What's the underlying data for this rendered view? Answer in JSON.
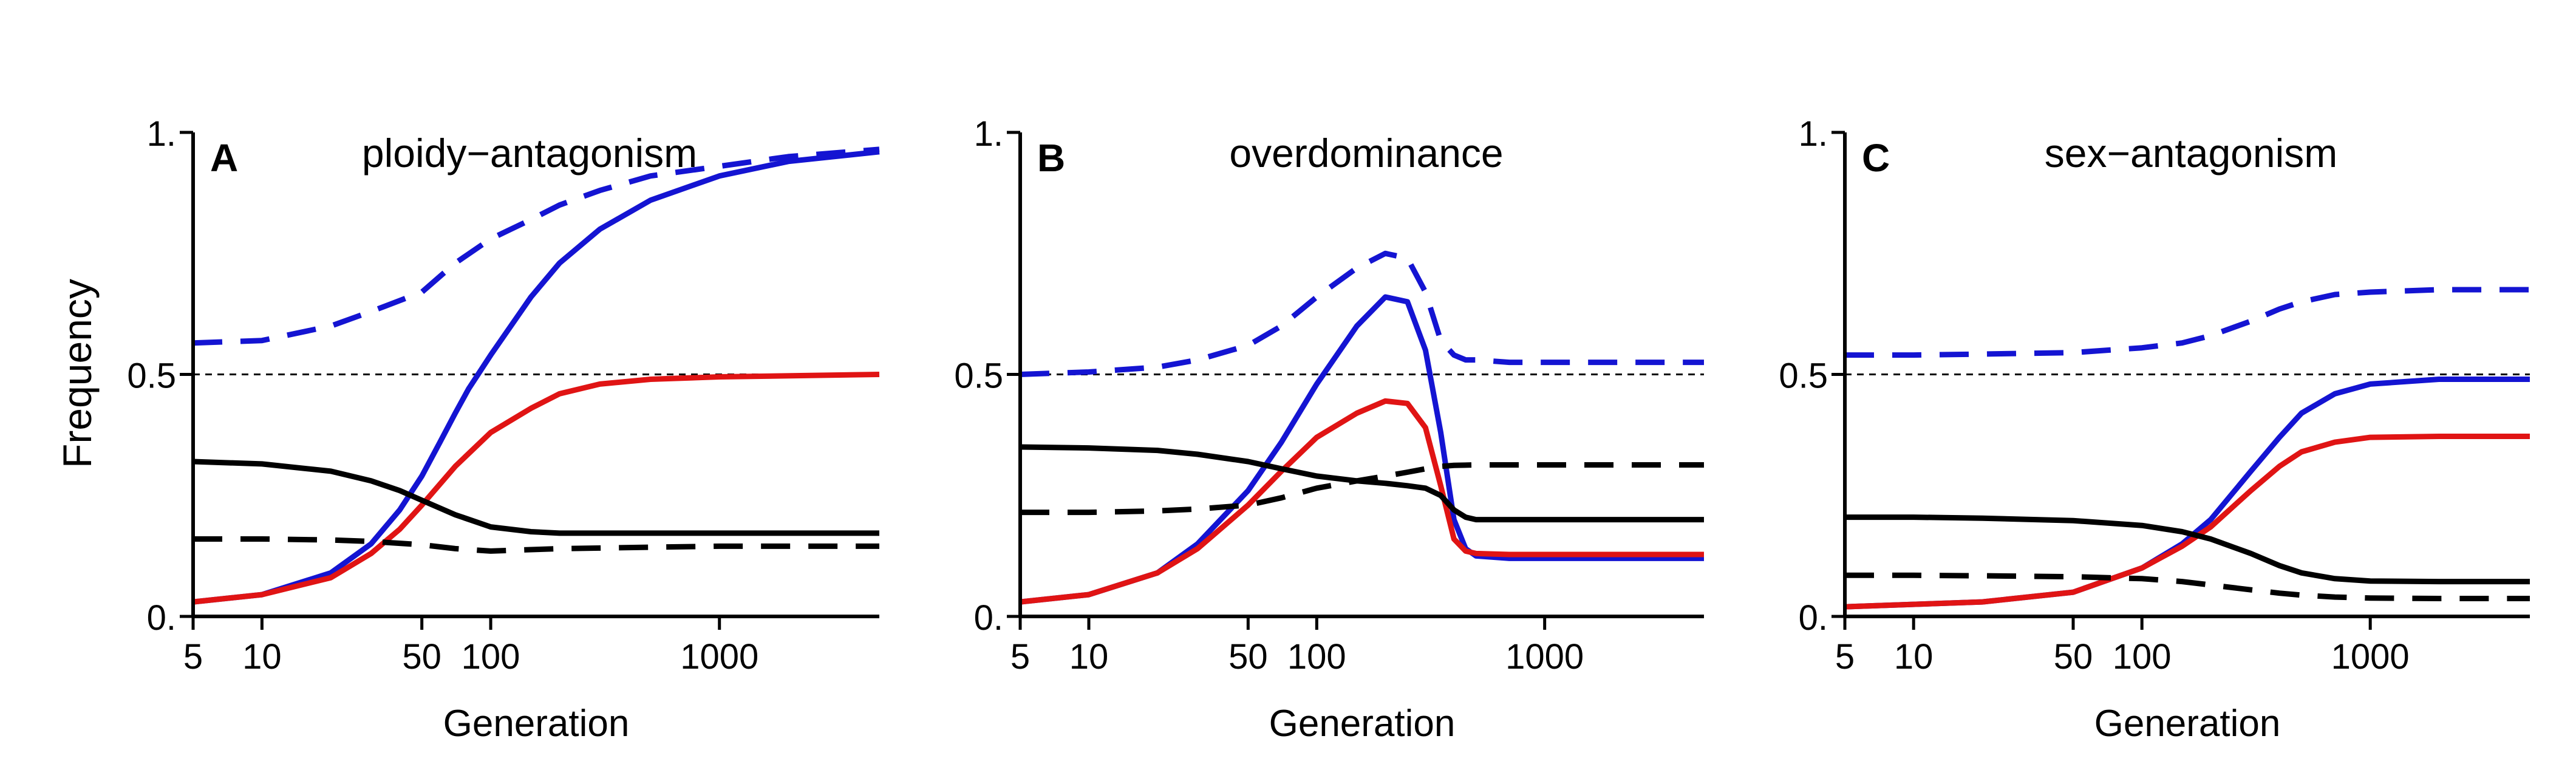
{
  "figure": {
    "ylabel": "Frequency"
  },
  "colors": {
    "blue": "#1414d2",
    "red": "#e01414",
    "black": "#000000"
  },
  "chart_data": [
    {
      "type": "line",
      "panel_letter": "A",
      "title": "ploidy−antagonism",
      "xlabel": "Generation",
      "ylabel": "Frequency",
      "x_scale": "log",
      "xlim": [
        5,
        5000
      ],
      "ylim": [
        0,
        1
      ],
      "x_ticks": [
        5,
        10,
        50,
        100,
        1000
      ],
      "x_tick_labels": [
        "5",
        "10",
        "50",
        "100",
        "1000"
      ],
      "y_ticks": [
        0,
        0.5,
        1
      ],
      "y_tick_labels": [
        "0.",
        "0.5",
        "1."
      ],
      "reference_line": 0.5,
      "series": [
        {
          "color": "#1414d2",
          "dash": "solid",
          "x": [
            5,
            10,
            20,
            30,
            40,
            50,
            60,
            70,
            80,
            100,
            150,
            200,
            300,
            500,
            1000,
            2000,
            5000
          ],
          "y": [
            0.03,
            0.045,
            0.09,
            0.15,
            0.22,
            0.29,
            0.36,
            0.42,
            0.47,
            0.54,
            0.66,
            0.73,
            0.8,
            0.86,
            0.91,
            0.94,
            0.96
          ]
        },
        {
          "color": "#1414d2",
          "dash": "dashed",
          "x": [
            5,
            10,
            20,
            30,
            50,
            70,
            100,
            150,
            200,
            300,
            500,
            1000,
            2000,
            5000
          ],
          "y": [
            0.565,
            0.57,
            0.6,
            0.63,
            0.67,
            0.73,
            0.78,
            0.82,
            0.85,
            0.88,
            0.91,
            0.93,
            0.95,
            0.965
          ]
        },
        {
          "color": "#e01414",
          "dash": "solid",
          "x": [
            5,
            10,
            20,
            30,
            40,
            50,
            70,
            100,
            150,
            200,
            300,
            500,
            1000,
            5000
          ],
          "y": [
            0.03,
            0.045,
            0.08,
            0.13,
            0.18,
            0.23,
            0.31,
            0.38,
            0.43,
            0.46,
            0.48,
            0.49,
            0.495,
            0.5
          ]
        },
        {
          "color": "#000000",
          "dash": "solid",
          "x": [
            5,
            10,
            20,
            30,
            40,
            50,
            70,
            100,
            150,
            200,
            500,
            1000,
            5000
          ],
          "y": [
            0.32,
            0.315,
            0.3,
            0.28,
            0.26,
            0.24,
            0.21,
            0.185,
            0.175,
            0.172,
            0.172,
            0.172,
            0.172
          ]
        },
        {
          "color": "#000000",
          "dash": "dashed",
          "x": [
            5,
            10,
            20,
            30,
            50,
            70,
            100,
            150,
            200,
            500,
            1000,
            5000
          ],
          "y": [
            0.16,
            0.16,
            0.158,
            0.155,
            0.148,
            0.14,
            0.135,
            0.138,
            0.14,
            0.143,
            0.145,
            0.145
          ]
        }
      ]
    },
    {
      "type": "line",
      "panel_letter": "B",
      "title": "overdominance",
      "xlabel": "Generation",
      "ylabel": "",
      "x_scale": "log",
      "xlim": [
        5,
        5000
      ],
      "ylim": [
        0,
        1
      ],
      "x_ticks": [
        5,
        10,
        50,
        100,
        1000
      ],
      "x_tick_labels": [
        "5",
        "10",
        "50",
        "100",
        "1000"
      ],
      "y_ticks": [
        0,
        0.5,
        1
      ],
      "y_tick_labels": [
        "0.",
        "0.5",
        "1."
      ],
      "reference_line": 0.5,
      "series": [
        {
          "color": "#1414d2",
          "dash": "solid",
          "x": [
            5,
            10,
            20,
            30,
            50,
            70,
            100,
            150,
            200,
            250,
            300,
            350,
            400,
            450,
            500,
            700,
            1000,
            5000
          ],
          "y": [
            0.03,
            0.045,
            0.09,
            0.15,
            0.26,
            0.36,
            0.48,
            0.6,
            0.66,
            0.65,
            0.55,
            0.38,
            0.2,
            0.14,
            0.125,
            0.12,
            0.12,
            0.12
          ]
        },
        {
          "color": "#1414d2",
          "dash": "dashed",
          "x": [
            5,
            10,
            20,
            30,
            50,
            70,
            100,
            150,
            200,
            250,
            300,
            350,
            400,
            450,
            500,
            700,
            1000,
            5000
          ],
          "y": [
            0.5,
            0.505,
            0.515,
            0.53,
            0.56,
            0.6,
            0.66,
            0.72,
            0.75,
            0.74,
            0.67,
            0.57,
            0.54,
            0.53,
            0.53,
            0.525,
            0.525,
            0.525
          ]
        },
        {
          "color": "#e01414",
          "dash": "solid",
          "x": [
            5,
            10,
            20,
            30,
            50,
            70,
            100,
            150,
            200,
            250,
            300,
            350,
            400,
            450,
            500,
            700,
            1000,
            5000
          ],
          "y": [
            0.03,
            0.045,
            0.09,
            0.14,
            0.23,
            0.3,
            0.37,
            0.42,
            0.445,
            0.44,
            0.39,
            0.27,
            0.16,
            0.135,
            0.13,
            0.128,
            0.128,
            0.128
          ]
        },
        {
          "color": "#000000",
          "dash": "solid",
          "x": [
            5,
            10,
            20,
            30,
            50,
            70,
            100,
            150,
            200,
            250,
            300,
            350,
            400,
            450,
            500,
            700,
            1000,
            5000
          ],
          "y": [
            0.35,
            0.348,
            0.343,
            0.335,
            0.32,
            0.305,
            0.29,
            0.28,
            0.275,
            0.27,
            0.265,
            0.25,
            0.22,
            0.205,
            0.2,
            0.2,
            0.2,
            0.2
          ]
        },
        {
          "color": "#000000",
          "dash": "dashed",
          "x": [
            5,
            10,
            20,
            30,
            50,
            70,
            100,
            150,
            200,
            250,
            300,
            350,
            400,
            500,
            1000,
            5000
          ],
          "y": [
            0.215,
            0.215,
            0.218,
            0.222,
            0.23,
            0.245,
            0.265,
            0.28,
            0.29,
            0.298,
            0.305,
            0.31,
            0.312,
            0.313,
            0.313,
            0.313
          ]
        }
      ]
    },
    {
      "type": "line",
      "panel_letter": "C",
      "title": "sex−antagonism",
      "xlabel": "Generation",
      "ylabel": "",
      "x_scale": "log",
      "xlim": [
        5,
        5000
      ],
      "ylim": [
        0,
        1
      ],
      "x_ticks": [
        5,
        10,
        50,
        100,
        1000
      ],
      "x_tick_labels": [
        "5",
        "10",
        "50",
        "100",
        "1000"
      ],
      "y_ticks": [
        0,
        0.5,
        1
      ],
      "y_tick_labels": [
        "0.",
        "0.5",
        "1."
      ],
      "reference_line": 0.5,
      "series": [
        {
          "color": "#1414d2",
          "dash": "solid",
          "x": [
            5,
            10,
            20,
            50,
            100,
            150,
            200,
            300,
            400,
            500,
            700,
            1000,
            2000,
            5000
          ],
          "y": [
            0.02,
            0.025,
            0.03,
            0.05,
            0.1,
            0.15,
            0.2,
            0.3,
            0.37,
            0.42,
            0.46,
            0.48,
            0.49,
            0.49
          ]
        },
        {
          "color": "#1414d2",
          "dash": "dashed",
          "x": [
            5,
            10,
            20,
            50,
            100,
            150,
            200,
            300,
            400,
            500,
            700,
            1000,
            2000,
            5000
          ],
          "y": [
            0.54,
            0.54,
            0.542,
            0.545,
            0.555,
            0.565,
            0.58,
            0.61,
            0.635,
            0.65,
            0.665,
            0.67,
            0.675,
            0.675
          ]
        },
        {
          "color": "#e01414",
          "dash": "solid",
          "x": [
            5,
            10,
            20,
            50,
            100,
            150,
            200,
            300,
            400,
            500,
            700,
            1000,
            2000,
            5000
          ],
          "y": [
            0.02,
            0.025,
            0.03,
            0.05,
            0.1,
            0.145,
            0.185,
            0.26,
            0.31,
            0.34,
            0.36,
            0.37,
            0.372,
            0.372
          ]
        },
        {
          "color": "#000000",
          "dash": "solid",
          "x": [
            5,
            10,
            20,
            50,
            100,
            150,
            200,
            300,
            400,
            500,
            700,
            1000,
            2000,
            5000
          ],
          "y": [
            0.205,
            0.205,
            0.203,
            0.198,
            0.188,
            0.175,
            0.16,
            0.13,
            0.105,
            0.09,
            0.078,
            0.073,
            0.072,
            0.072
          ]
        },
        {
          "color": "#000000",
          "dash": "dashed",
          "x": [
            5,
            10,
            20,
            50,
            100,
            150,
            200,
            300,
            400,
            500,
            700,
            1000,
            2000,
            5000
          ],
          "y": [
            0.085,
            0.085,
            0.084,
            0.082,
            0.078,
            0.072,
            0.065,
            0.055,
            0.048,
            0.044,
            0.04,
            0.038,
            0.037,
            0.037
          ]
        }
      ]
    }
  ]
}
